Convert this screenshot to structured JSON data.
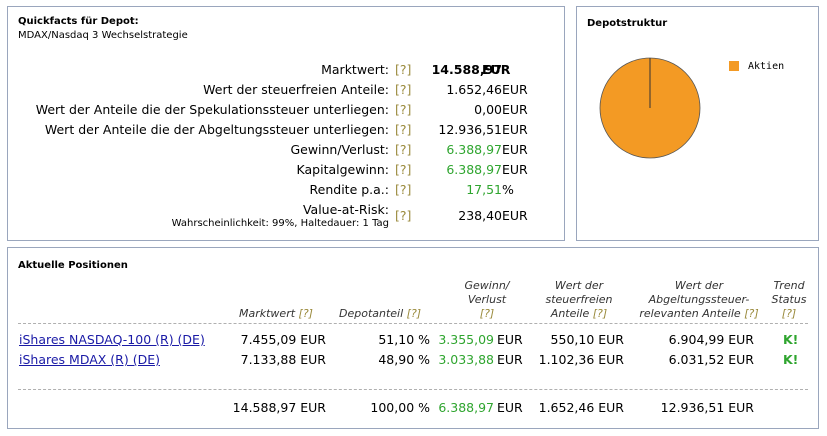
{
  "quickfacts": {
    "title": "Quickfacts für Depot:",
    "subtitle": "MDAX/Nasdaq 3 Wechselstrategie",
    "help": "[?]",
    "rows": [
      {
        "label": "Marktwert:",
        "value": "14.588,97",
        "unit": "EUR"
      },
      {
        "label": "Wert der steuerfreien Anteile:",
        "value": "1.652,46",
        "unit": "EUR"
      },
      {
        "label": "Wert der Anteile die der Spekulationssteuer unterliegen:",
        "value": "0,00",
        "unit": "EUR"
      },
      {
        "label": "Wert der Anteile die der Abgeltungssteuer unterliegen:",
        "value": "12.936,51",
        "unit": "EUR"
      },
      {
        "label": "Gewinn/Verlust:",
        "value": "6.388,97",
        "unit": "EUR"
      },
      {
        "label": "Kapitalgewinn:",
        "value": "6.388,97",
        "unit": "EUR"
      },
      {
        "label": "Rendite p.a.:",
        "value": "17,51",
        "unit": "%"
      },
      {
        "label": "Value-at-Risk:",
        "sublabel": "Wahrscheinlichkeit: 99%, Haltedauer: 1 Tag",
        "value": "238,40",
        "unit": "EUR"
      }
    ]
  },
  "depotstruktur": {
    "title": "Depotstruktur",
    "legend": [
      {
        "label": "Aktien",
        "color": "#f39a24"
      }
    ]
  },
  "positions": {
    "title": "Aktuelle Positionen",
    "help": "[?]",
    "columns": {
      "marktwert": "Marktwert",
      "depotanteil": "Depotanteil",
      "gewinn_1": "Gewinn/",
      "gewinn_2": "Verlust",
      "steuerfrei_1": "Wert der",
      "steuerfrei_2": "steuerfreien",
      "steuerfrei_3": "Anteile",
      "abgelt_1": "Wert der",
      "abgelt_2": "Abgeltungssteuer-",
      "abgelt_3": "relevanten Anteile",
      "trend_1": "Trend",
      "trend_2": "Status"
    },
    "rows": [
      {
        "name": "iShares NASDAQ-100 (R) (DE)",
        "marktwert": "7.455,09 EUR",
        "depotanteil": "51,10 %",
        "gewinn": "3.355,09",
        "gewinn_unit": "EUR",
        "steuerfrei": "550,10 EUR",
        "abgelt": "6.904,99 EUR",
        "trend": "K!"
      },
      {
        "name": "iShares MDAX (R) (DE)",
        "marktwert": "7.133,88 EUR",
        "depotanteil": "48,90 %",
        "gewinn": "3.033,88",
        "gewinn_unit": "EUR",
        "steuerfrei": "1.102,36 EUR",
        "abgelt": "6.031,52 EUR",
        "trend": "K!"
      }
    ],
    "totals": {
      "marktwert": "14.588,97 EUR",
      "depotanteil": "100,00 %",
      "gewinn": "6.388,97",
      "gewinn_unit": "EUR",
      "steuerfrei": "1.652,46 EUR",
      "abgelt": "12.936,51 EUR"
    }
  }
}
